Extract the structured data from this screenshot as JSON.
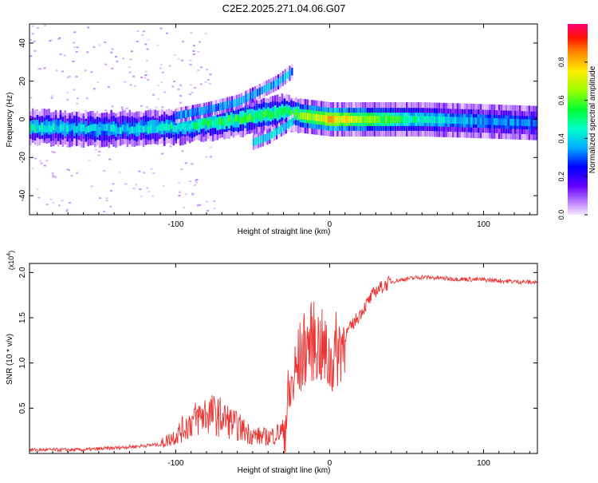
{
  "title": "C2E2.2025.271.04.06.G07",
  "chart_data": [
    {
      "type": "heatmap",
      "name": "spectrogram",
      "xlabel": "Height of straight line (km)",
      "ylabel": "Frequency (Hz)",
      "xlim": [
        -195,
        135
      ],
      "ylim": [
        -50,
        50
      ],
      "xticks": [
        -100,
        0,
        100
      ],
      "yticks": [
        -40,
        -20,
        0,
        20,
        40
      ],
      "colorbar": {
        "label": "Normalized spectral amplitude",
        "range": [
          0,
          1
        ],
        "ticks": [
          "0.0",
          "0.2",
          "0.4",
          "0.6",
          "0.8"
        ],
        "tick_values": [
          0.0,
          0.2,
          0.4,
          0.6,
          0.8
        ]
      },
      "ridge": {
        "x": [
          -195,
          -160,
          -130,
          -100,
          -80,
          -60,
          -45,
          -30,
          -20,
          0,
          30,
          60,
          100,
          135
        ],
        "freq": [
          -4,
          -5,
          -5,
          -4,
          -2,
          0,
          2,
          4,
          2,
          0,
          0,
          0,
          -1,
          -2
        ],
        "amplitude": [
          0.45,
          0.4,
          0.4,
          0.45,
          0.5,
          0.55,
          0.55,
          0.5,
          0.6,
          0.8,
          0.6,
          0.45,
          0.35,
          0.3
        ]
      },
      "upper_branch": {
        "x": [
          -100,
          -80,
          -60,
          -45,
          -35,
          -25
        ],
        "freq": [
          2,
          5,
          9,
          15,
          19,
          25
        ]
      },
      "lower_branch": {
        "x": [
          -50,
          -40,
          -30,
          -24
        ],
        "freq": [
          -12,
          -9,
          -4,
          -1
        ]
      }
    },
    {
      "type": "line",
      "name": "snr",
      "xlabel": "Height of straight line (km)",
      "ylabel": "SNR (10 * v/v)",
      "y_multiplier": "(x10",
      "y_exponent": "4",
      "line_color": "#ee3333",
      "xlim": [
        -195,
        135
      ],
      "ylim": [
        0,
        2.1
      ],
      "xticks": [
        -100,
        0,
        100
      ],
      "yticks": [
        0.5,
        1.0,
        1.5,
        2.0
      ],
      "ytick_labels": [
        "0.5",
        "1.0",
        "1.5",
        "2.0"
      ],
      "x": [
        -195,
        -160,
        -140,
        -110,
        -100,
        -90,
        -80,
        -70,
        -60,
        -50,
        -40,
        -30,
        -25,
        -20,
        -15,
        -10,
        -5,
        0,
        10,
        20,
        30,
        40,
        50,
        60,
        80,
        100,
        110,
        120,
        135
      ],
      "y": [
        0.04,
        0.04,
        0.06,
        0.1,
        0.2,
        0.35,
        0.45,
        0.4,
        0.3,
        0.2,
        0.18,
        0.25,
        0.7,
        1.0,
        1.2,
        1.25,
        1.15,
        1.0,
        1.3,
        1.55,
        1.8,
        1.9,
        1.93,
        1.95,
        1.93,
        1.92,
        1.91,
        1.9,
        1.89
      ]
    }
  ]
}
